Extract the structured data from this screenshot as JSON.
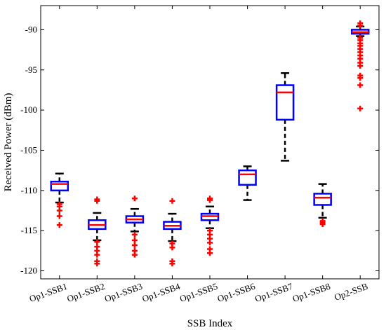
{
  "chart_data": {
    "type": "box",
    "title": "",
    "xlabel": "SSB Index",
    "ylabel": "Received Power (dBm)",
    "ylim": [
      -121,
      -87
    ],
    "yticks": [
      -120,
      -115,
      -110,
      -105,
      -100,
      -95,
      -90
    ],
    "grid": false,
    "colors": {
      "box": "#0000ff",
      "median": "#ff0000",
      "whisker": "#000000",
      "outlier": "#ff0000"
    },
    "categories": [
      "Op1-SSB1",
      "Op1-SSB2",
      "Op1-SSB3",
      "Op1-SSB4",
      "Op1-SSB5",
      "Op1-SSB6",
      "Op1-SSB7",
      "Op1-SSB8",
      "Op2-SSB"
    ],
    "boxes": [
      {
        "whisker_low": -111.5,
        "q1": -110.0,
        "median": -109.2,
        "q3": -108.9,
        "whisker_high": -107.9,
        "outliers": [
          -111.7,
          -112.0,
          -112.5,
          -113.2,
          -114.3
        ]
      },
      {
        "whisker_low": -116.2,
        "q1": -114.8,
        "median": -114.3,
        "q3": -113.7,
        "whisker_high": -112.8,
        "outliers": [
          -111.1,
          -111.3,
          -116.4,
          -117.0,
          -117.5,
          -118.0,
          -118.8,
          -119.1
        ]
      },
      {
        "whisker_low": -115.1,
        "q1": -114.0,
        "median": -113.6,
        "q3": -113.2,
        "whisker_high": -112.3,
        "outliers": [
          -111.0,
          -115.5,
          -116.2,
          -116.8,
          -117.5,
          -118.0
        ]
      },
      {
        "whisker_low": -116.3,
        "q1": -114.8,
        "median": -114.4,
        "q3": -113.9,
        "whisker_high": -112.9,
        "outliers": [
          -111.3,
          -116.6,
          -117.1,
          -118.8,
          -119.1
        ]
      },
      {
        "whisker_low": -114.7,
        "q1": -113.7,
        "median": -113.2,
        "q3": -112.9,
        "whisker_high": -112.0,
        "outliers": [
          -111.0,
          -111.2,
          -115.0,
          -115.5,
          -116.0,
          -116.5,
          -117.3,
          -117.8
        ]
      },
      {
        "whisker_low": -111.2,
        "q1": -109.3,
        "median": -108.0,
        "q3": -107.5,
        "whisker_high": -107.0,
        "outliers": []
      },
      {
        "whisker_low": -106.3,
        "q1": -101.2,
        "median": -97.8,
        "q3": -96.9,
        "whisker_high": -95.4,
        "outliers": []
      },
      {
        "whisker_low": -113.4,
        "q1": -111.8,
        "median": -110.9,
        "q3": -110.4,
        "whisker_high": -109.2,
        "outliers": [
          -113.8,
          -114.0,
          -114.2
        ]
      },
      {
        "whisker_low": -90.8,
        "q1": -90.5,
        "median": -90.3,
        "q3": -90.0,
        "whisker_high": -89.6,
        "outliers": [
          -89.2,
          -89.5,
          -91.0,
          -91.3,
          -91.7,
          -92.0,
          -92.4,
          -92.8,
          -93.2,
          -93.6,
          -94.1,
          -94.5,
          -95.7,
          -96.0,
          -96.9,
          -99.8
        ]
      }
    ]
  }
}
